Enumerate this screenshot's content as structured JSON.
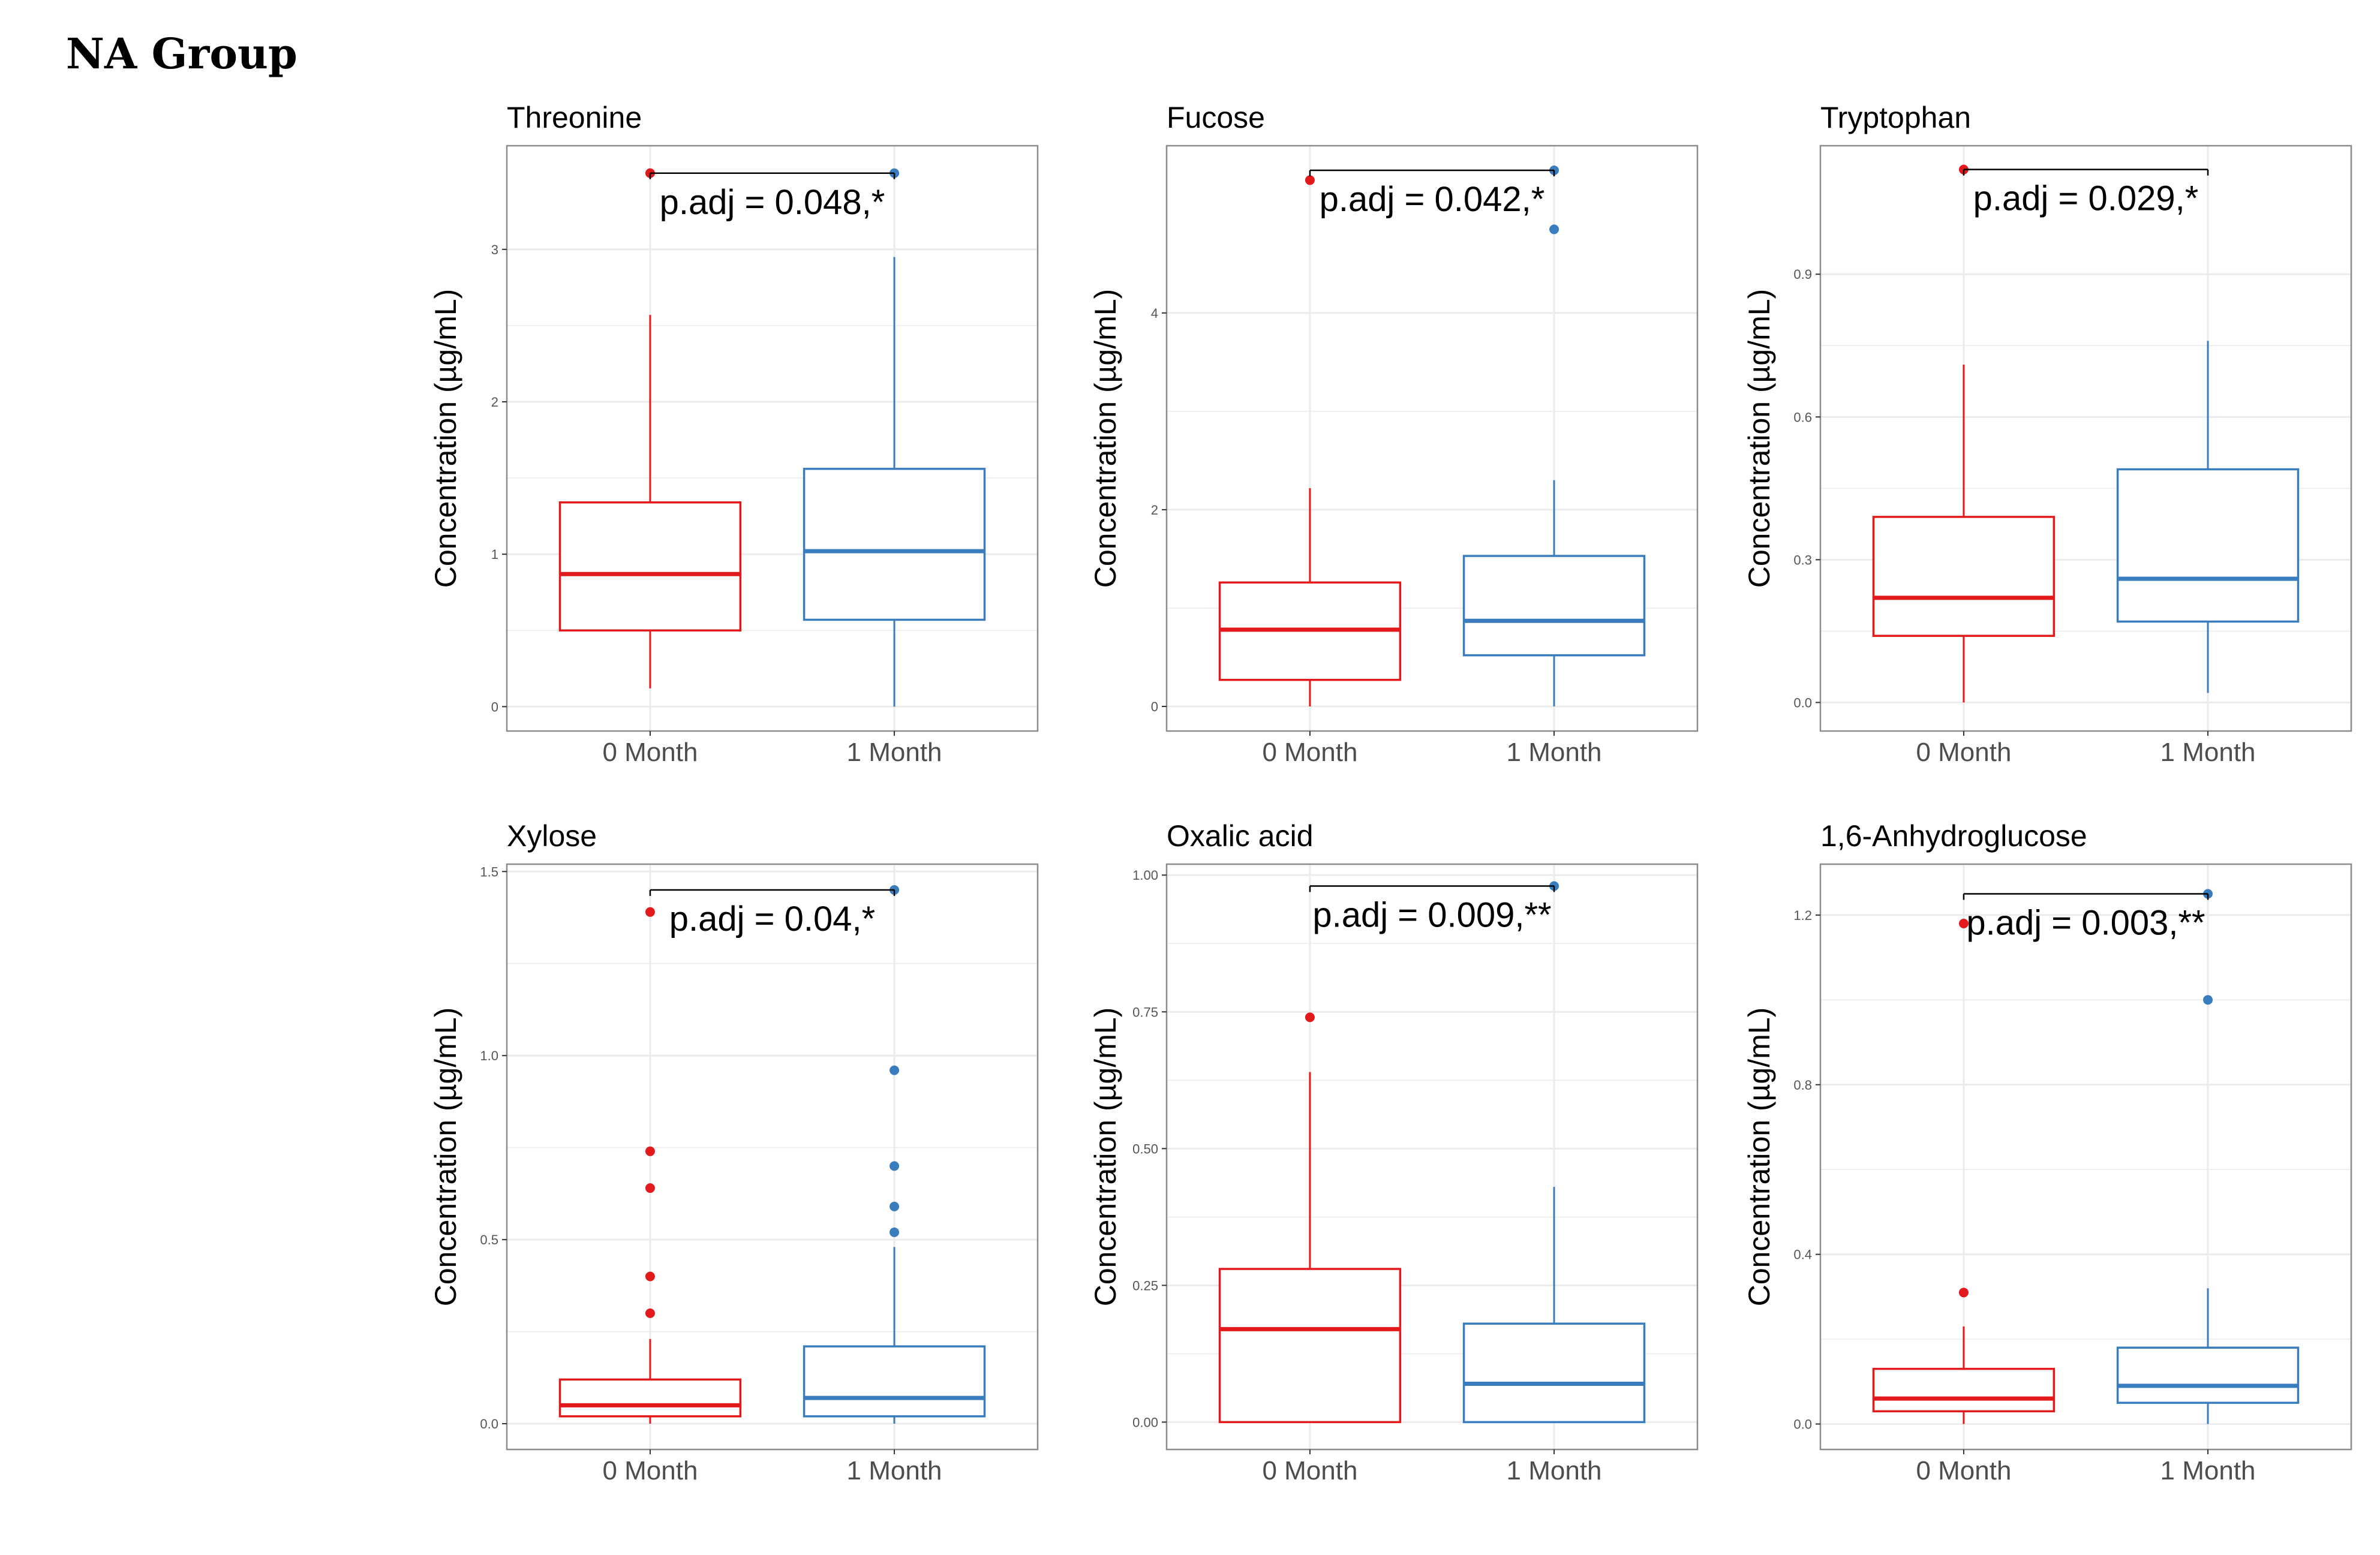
{
  "page": {
    "title": "NA Group"
  },
  "colors": {
    "zero_month": "#e31a1c",
    "one_month": "#3a7dbf",
    "grid": "#ebebeb",
    "frame": "#8c8c8c"
  },
  "chart_data": [
    {
      "type": "box",
      "title": "Threonine",
      "ylabel": "Concentration (µg/mL)",
      "categories": [
        "0 Month",
        "1 Month"
      ],
      "ylim": [
        -0.16,
        3.68
      ],
      "yticks": [
        0,
        1,
        2,
        3
      ],
      "yticklabels": [
        "0",
        "1",
        "2",
        "3"
      ],
      "boxes": [
        {
          "q1": 0.5,
          "median": 0.87,
          "q3": 1.34,
          "whisker_low": 0.12,
          "whisker_high": 2.57,
          "outliers": [
            3.5
          ]
        },
        {
          "q1": 0.57,
          "median": 1.02,
          "q3": 1.56,
          "whisker_low": 0.0,
          "whisker_high": 2.95,
          "outliers": [
            3.5
          ]
        }
      ],
      "annotation": {
        "label": "p.adj = 0.048,*",
        "y": 3.5
      }
    },
    {
      "type": "box",
      "title": "Fucose",
      "ylabel": "Concentration (µg/mL)",
      "categories": [
        "0 Month",
        "1 Month"
      ],
      "ylim": [
        -0.25,
        5.7
      ],
      "yticks": [
        0,
        2,
        4
      ],
      "yticklabels": [
        "0",
        "2",
        "4"
      ],
      "boxes": [
        {
          "q1": 0.27,
          "median": 0.78,
          "q3": 1.26,
          "whisker_low": 0.0,
          "whisker_high": 2.22,
          "outliers": [
            5.35
          ]
        },
        {
          "q1": 0.52,
          "median": 0.87,
          "q3": 1.53,
          "whisker_low": 0.0,
          "whisker_high": 2.3,
          "outliers": [
            4.85,
            5.45
          ]
        }
      ],
      "annotation": {
        "label": "p.adj = 0.042,*",
        "y": 5.45
      }
    },
    {
      "type": "box",
      "title": "Tryptophan",
      "ylabel": "Concentration (µg/mL)",
      "categories": [
        "0 Month",
        "1 Month"
      ],
      "ylim": [
        -0.06,
        1.17
      ],
      "yticks": [
        0.0,
        0.3,
        0.6,
        0.9
      ],
      "yticklabels": [
        "0.0",
        "0.3",
        "0.6",
        "0.9"
      ],
      "boxes": [
        {
          "q1": 0.14,
          "median": 0.22,
          "q3": 0.39,
          "whisker_low": 0.0,
          "whisker_high": 0.71,
          "outliers": [
            1.12
          ]
        },
        {
          "q1": 0.17,
          "median": 0.26,
          "q3": 0.49,
          "whisker_low": 0.02,
          "whisker_high": 0.76,
          "outliers": []
        }
      ],
      "annotation": {
        "label": "p.adj = 0.029,*",
        "y": 1.12
      }
    },
    {
      "type": "box",
      "title": "Xylose",
      "ylabel": "Concentration (µg/mL)",
      "categories": [
        "0 Month",
        "1 Month"
      ],
      "ylim": [
        -0.07,
        1.52
      ],
      "yticks": [
        0.0,
        0.5,
        1.0,
        1.5
      ],
      "yticklabels": [
        "0.0",
        "0.5",
        "1.0",
        "1.5"
      ],
      "boxes": [
        {
          "q1": 0.02,
          "median": 0.05,
          "q3": 0.12,
          "whisker_low": 0.0,
          "whisker_high": 0.23,
          "outliers": [
            0.3,
            0.4,
            0.64,
            0.74,
            1.39
          ]
        },
        {
          "q1": 0.02,
          "median": 0.07,
          "q3": 0.21,
          "whisker_low": 0.0,
          "whisker_high": 0.48,
          "outliers": [
            0.52,
            0.59,
            0.7,
            0.96,
            1.45
          ]
        }
      ],
      "annotation": {
        "label": "p.adj = 0.04,*",
        "y": 1.45
      }
    },
    {
      "type": "box",
      "title": "Oxalic acid",
      "ylabel": "Concentration (µg/mL)",
      "categories": [
        "0 Month",
        "1 Month"
      ],
      "ylim": [
        -0.05,
        1.02
      ],
      "yticks": [
        0.0,
        0.25,
        0.5,
        0.75,
        1.0
      ],
      "yticklabels": [
        "0.00",
        "0.25",
        "0.50",
        "0.75",
        "1.00"
      ],
      "boxes": [
        {
          "q1": 0.0,
          "median": 0.17,
          "q3": 0.28,
          "whisker_low": 0.0,
          "whisker_high": 0.64,
          "outliers": [
            0.74
          ]
        },
        {
          "q1": 0.0,
          "median": 0.07,
          "q3": 0.18,
          "whisker_low": 0.0,
          "whisker_high": 0.43,
          "outliers": [
            0.98
          ]
        }
      ],
      "annotation": {
        "label": "p.adj = 0.009,**",
        "y": 0.98
      }
    },
    {
      "type": "box",
      "title": "1,6-Anhydroglucose",
      "ylabel": "Concentration (µg/mL)",
      "categories": [
        "0 Month",
        "1 Month"
      ],
      "ylim": [
        -0.06,
        1.32
      ],
      "yticks": [
        0.0,
        0.4,
        0.8,
        1.2
      ],
      "yticklabels": [
        "0.0",
        "0.4",
        "0.8",
        "1.2"
      ],
      "boxes": [
        {
          "q1": 0.03,
          "median": 0.06,
          "q3": 0.13,
          "whisker_low": 0.0,
          "whisker_high": 0.23,
          "outliers": [
            0.31,
            1.18
          ]
        },
        {
          "q1": 0.05,
          "median": 0.09,
          "q3": 0.18,
          "whisker_low": 0.0,
          "whisker_high": 0.32,
          "outliers": [
            1.0,
            1.25
          ]
        }
      ],
      "annotation": {
        "label": "p.adj = 0.003,**",
        "y": 1.25
      }
    }
  ]
}
